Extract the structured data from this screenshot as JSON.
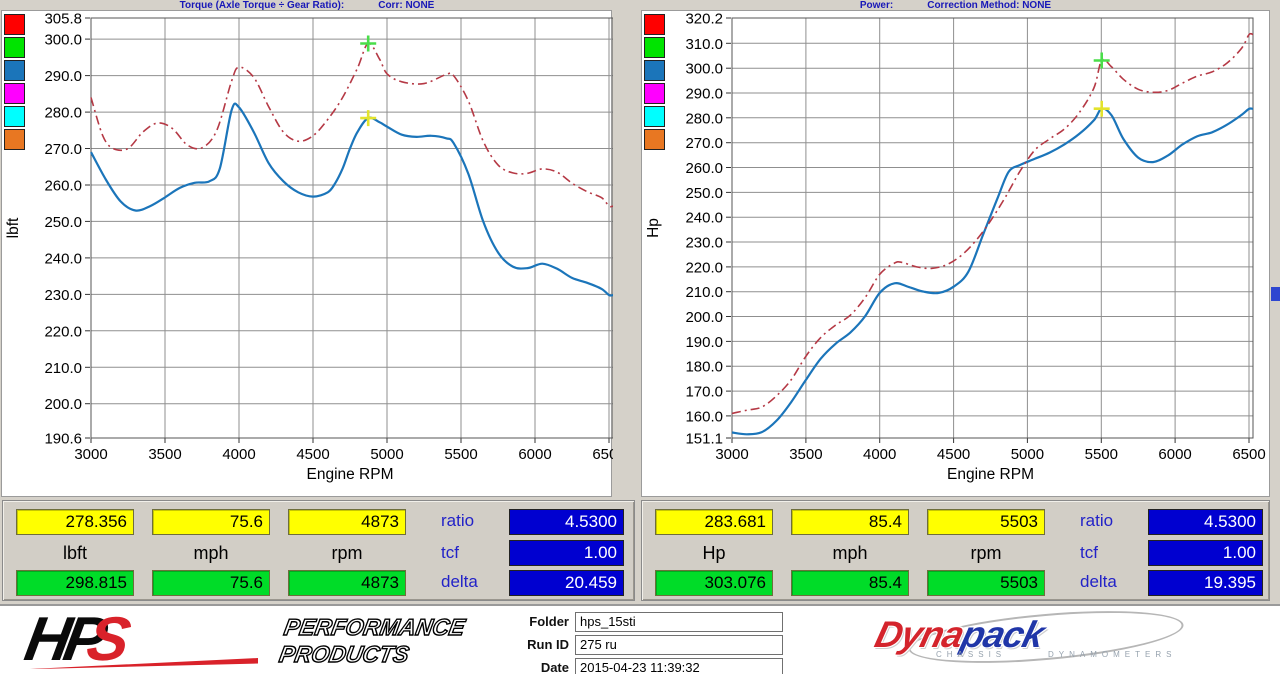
{
  "chart_data": [
    {
      "type": "line",
      "title": "Torque (Axle Torque ÷ Gear Ratio):",
      "correction": "Corr: NONE",
      "xlabel": "Engine RPM",
      "ylabel": "lbft",
      "xlim": [
        3000,
        6500
      ],
      "ylim": [
        190.6,
        305.8
      ],
      "x_ticks": [
        3000,
        3500,
        4000,
        4500,
        5000,
        5500,
        6000,
        6500
      ],
      "y_ticks": [
        305.8,
        300,
        290,
        280,
        270,
        260,
        250,
        240,
        230,
        220,
        210,
        200,
        190.6
      ],
      "y_tick_labels": [
        "305.8",
        "300.0",
        "290.0",
        "280.0",
        "270.0",
        "260.0",
        "250.0",
        "240.0",
        "230.0",
        "220.0",
        "210.0",
        "200.0",
        "190.6"
      ],
      "grid": true,
      "legend_position": "top-left",
      "legend_colors": [
        "#ff0000",
        "#00e400",
        "#1b75ba",
        "#ff00ff",
        "#00ffff",
        "#e87722"
      ],
      "series": [
        {
          "name": "blue-run",
          "color": "#1b75ba",
          "line_style": "solid",
          "points": [
            [
              3000,
              269
            ],
            [
              3100,
              261.5
            ],
            [
              3200,
              255.5
            ],
            [
              3300,
              253
            ],
            [
              3400,
              254.2
            ],
            [
              3500,
              256.6
            ],
            [
              3600,
              259.2
            ],
            [
              3700,
              260.6
            ],
            [
              3800,
              261
            ],
            [
              3870,
              264.5
            ],
            [
              3950,
              280.5
            ],
            [
              4000,
              281.3
            ],
            [
              4100,
              274.5
            ],
            [
              4200,
              266
            ],
            [
              4300,
              261
            ],
            [
              4400,
              258
            ],
            [
              4500,
              256.8
            ],
            [
              4600,
              258
            ],
            [
              4650,
              260.5
            ],
            [
              4700,
              264.5
            ],
            [
              4750,
              270
            ],
            [
              4800,
              274.5
            ],
            [
              4873,
              278.36
            ],
            [
              4950,
              277.2
            ],
            [
              5000,
              276
            ],
            [
              5100,
              273.8
            ],
            [
              5200,
              273.2
            ],
            [
              5300,
              273.5
            ],
            [
              5400,
              272.8
            ],
            [
              5450,
              271.5
            ],
            [
              5550,
              263
            ],
            [
              5650,
              250
            ],
            [
              5750,
              241.5
            ],
            [
              5850,
              237.6
            ],
            [
              5950,
              237.2
            ],
            [
              6050,
              238.4
            ],
            [
              6150,
              237
            ],
            [
              6250,
              234.5
            ],
            [
              6350,
              233.2
            ],
            [
              6450,
              231.5
            ],
            [
              6500,
              229.8
            ]
          ]
        },
        {
          "name": "red-run",
          "color": "#b53945",
          "line_style": "dash-dot",
          "points": [
            [
              3000,
              284
            ],
            [
              3080,
              273.5
            ],
            [
              3150,
              270
            ],
            [
              3250,
              270
            ],
            [
              3350,
              274.5
            ],
            [
              3450,
              277
            ],
            [
              3550,
              275.5
            ],
            [
              3650,
              271
            ],
            [
              3750,
              270.2
            ],
            [
              3850,
              275
            ],
            [
              3950,
              288.5
            ],
            [
              4000,
              292.3
            ],
            [
              4100,
              289.5
            ],
            [
              4200,
              281.5
            ],
            [
              4300,
              274.5
            ],
            [
              4400,
              272
            ],
            [
              4500,
              273.5
            ],
            [
              4600,
              278
            ],
            [
              4700,
              284
            ],
            [
              4800,
              292
            ],
            [
              4873,
              298.82
            ],
            [
              4950,
              294.5
            ],
            [
              5000,
              290.5
            ],
            [
              5100,
              288.3
            ],
            [
              5250,
              287.8
            ],
            [
              5400,
              290.3
            ],
            [
              5450,
              290
            ],
            [
              5550,
              283
            ],
            [
              5650,
              272
            ],
            [
              5750,
              265.5
            ],
            [
              5850,
              263.3
            ],
            [
              5950,
              263.2
            ],
            [
              6050,
              264.4
            ],
            [
              6150,
              263.5
            ],
            [
              6250,
              260.5
            ],
            [
              6350,
              258.2
            ],
            [
              6450,
              256.5
            ],
            [
              6500,
              254.2
            ]
          ]
        }
      ],
      "markers": [
        {
          "x": 4873,
          "y": 278.356,
          "shape": "plus",
          "color": "#e3e32c"
        },
        {
          "x": 4873,
          "y": 298.815,
          "shape": "plus",
          "color": "#4ade4a"
        }
      ]
    },
    {
      "type": "line",
      "title": "Power:",
      "correction": "Correction Method: NONE",
      "xlabel": "Engine RPM",
      "ylabel": "Hp",
      "xlim": [
        3000,
        6500
      ],
      "ylim": [
        151.1,
        320.2
      ],
      "x_ticks": [
        3000,
        3500,
        4000,
        4500,
        5000,
        5500,
        6000,
        6500
      ],
      "y_ticks": [
        320.2,
        310,
        300,
        290,
        280,
        270,
        260,
        250,
        240,
        230,
        220,
        210,
        200,
        190,
        180,
        170,
        160,
        151.1
      ],
      "y_tick_labels": [
        "320.2",
        "310.0",
        "300.0",
        "290.0",
        "280.0",
        "270.0",
        "260.0",
        "250.0",
        "240.0",
        "230.0",
        "220.0",
        "210.0",
        "200.0",
        "190.0",
        "180.0",
        "170.0",
        "160.0",
        "151.1"
      ],
      "grid": true,
      "legend_position": "top-left",
      "legend_colors": [
        "#ff0000",
        "#00e400",
        "#1b75ba",
        "#ff00ff",
        "#00ffff",
        "#e87722"
      ],
      "series": [
        {
          "name": "blue-run",
          "color": "#1b75ba",
          "line_style": "solid",
          "points": [
            [
              3000,
              153.3
            ],
            [
              3100,
              152.6
            ],
            [
              3200,
              153.4
            ],
            [
              3300,
              158
            ],
            [
              3400,
              165.5
            ],
            [
              3500,
              174.5
            ],
            [
              3600,
              183
            ],
            [
              3700,
              189
            ],
            [
              3800,
              193.5
            ],
            [
              3900,
              200
            ],
            [
              4000,
              209.5
            ],
            [
              4100,
              213.4
            ],
            [
              4200,
              211.8
            ],
            [
              4300,
              210
            ],
            [
              4400,
              209.5
            ],
            [
              4500,
              212
            ],
            [
              4600,
              218
            ],
            [
              4700,
              233
            ],
            [
              4800,
              248
            ],
            [
              4873,
              258.3
            ],
            [
              4950,
              261
            ],
            [
              5050,
              263.5
            ],
            [
              5150,
              266
            ],
            [
              5250,
              269.3
            ],
            [
              5350,
              273.5
            ],
            [
              5450,
              279
            ],
            [
              5503,
              283.68
            ],
            [
              5570,
              281
            ],
            [
              5650,
              271.5
            ],
            [
              5750,
              264
            ],
            [
              5850,
              262.2
            ],
            [
              5950,
              264.8
            ],
            [
              6050,
              269.3
            ],
            [
              6150,
              272.6
            ],
            [
              6250,
              274.2
            ],
            [
              6350,
              277.2
            ],
            [
              6450,
              281.2
            ],
            [
              6500,
              283.6
            ]
          ]
        },
        {
          "name": "red-run",
          "color": "#b53945",
          "line_style": "dash-dot",
          "points": [
            [
              3000,
              161
            ],
            [
              3100,
              162.3
            ],
            [
              3200,
              163.5
            ],
            [
              3300,
              168
            ],
            [
              3400,
              174.5
            ],
            [
              3500,
              184
            ],
            [
              3600,
              191.5
            ],
            [
              3700,
              196.5
            ],
            [
              3800,
              200.5
            ],
            [
              3900,
              207.5
            ],
            [
              4000,
              217
            ],
            [
              4100,
              221.5
            ],
            [
              4150,
              221.8
            ],
            [
              4250,
              220
            ],
            [
              4350,
              219.4
            ],
            [
              4450,
              220.8
            ],
            [
              4550,
              224.5
            ],
            [
              4650,
              230.5
            ],
            [
              4750,
              238.5
            ],
            [
              4850,
              248
            ],
            [
              4950,
              258.5
            ],
            [
              5050,
              267
            ],
            [
              5150,
              271.5
            ],
            [
              5250,
              275.5
            ],
            [
              5350,
              282
            ],
            [
              5450,
              292
            ],
            [
              5503,
              303.08
            ],
            [
              5570,
              300.5
            ],
            [
              5650,
              295.5
            ],
            [
              5750,
              291.5
            ],
            [
              5850,
              290.3
            ],
            [
              5950,
              291
            ],
            [
              6050,
              294
            ],
            [
              6150,
              296.8
            ],
            [
              6250,
              298.5
            ],
            [
              6350,
              302
            ],
            [
              6450,
              308
            ],
            [
              6500,
              313.5
            ]
          ]
        }
      ],
      "markers": [
        {
          "x": 5503,
          "y": 283.681,
          "shape": "plus",
          "color": "#e3e32c"
        },
        {
          "x": 5503,
          "y": 303.076,
          "shape": "plus",
          "color": "#4ade4a"
        }
      ]
    }
  ],
  "readouts": {
    "left": {
      "peak_value": "278.356",
      "speed": "75.6",
      "rpm": "4873",
      "unit_label": "lbft",
      "speed_label": "mph",
      "rpm_label": "rpm",
      "peak2_value": "298.815",
      "speed2": "75.6",
      "rpm2": "4873",
      "ratio_label": "ratio",
      "ratio_value": "4.5300",
      "tcf_label": "tcf",
      "tcf_value": "1.00",
      "delta_label": "delta",
      "delta_value": "20.459"
    },
    "right": {
      "peak_value": "283.681",
      "speed": "85.4",
      "rpm": "5503",
      "unit_label": "Hp",
      "speed_label": "mph",
      "rpm_label": "rpm",
      "peak2_value": "303.076",
      "speed2": "85.4",
      "rpm2": "5503",
      "ratio_label": "ratio",
      "ratio_value": "4.5300",
      "tcf_label": "tcf",
      "tcf_value": "1.00",
      "delta_label": "delta",
      "delta_value": "19.395"
    }
  },
  "footer": {
    "hps": {
      "wordmark_hp": "HP",
      "wordmark_s": "S",
      "line1": "PERFORMANCE",
      "line2": "PRODUCTS"
    },
    "fields": [
      {
        "label": "Folder",
        "value": "hps_15sti"
      },
      {
        "label": "Run ID",
        "value": "275 ru"
      },
      {
        "label": "Date",
        "value": "2015-04-23 11:39:32"
      }
    ],
    "dynapack": {
      "word1": "Dyna",
      "word2": "pack",
      "sub1": "CHASSIS",
      "sub2": "DYNAMOMETERS"
    }
  }
}
